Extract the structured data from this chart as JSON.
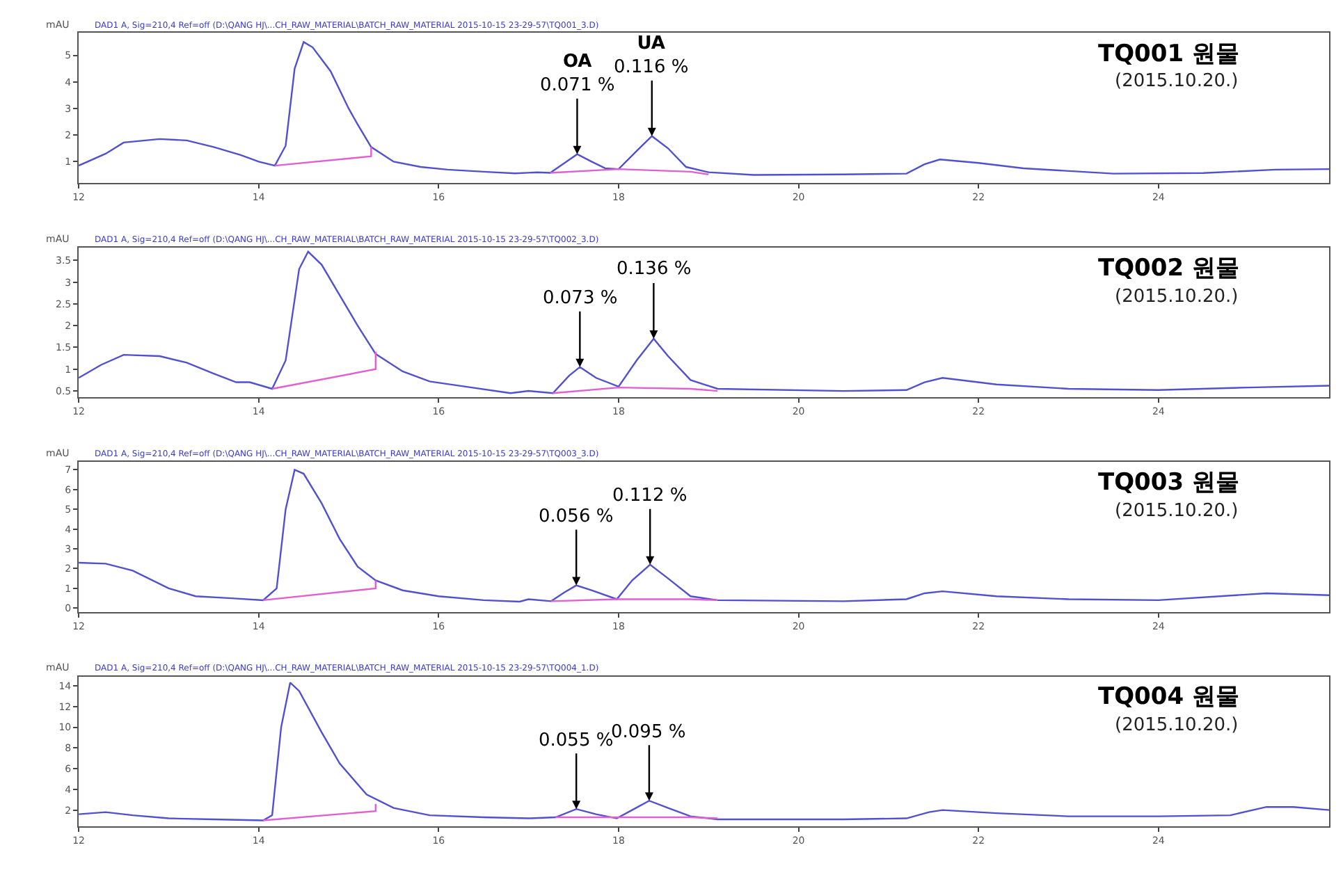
{
  "chart_data": [
    {
      "type": "line",
      "title": "TQ001 원물",
      "subtitle": "(2015.10.20.)",
      "ylabel": "mAU",
      "xlim": [
        12,
        25.9
      ],
      "xticks": [
        12,
        14,
        16,
        18,
        20,
        22,
        24
      ],
      "ylim": [
        0.2,
        5.85
      ],
      "yticks": [
        1,
        2,
        3,
        4,
        5
      ],
      "annotations": [
        "DAD1 A, Sig=210,4 Ref=off (D:\\QANG HJ\\...CH_RAW_MATERIAL\\BATCH_RAW_MATERIAL 2015-10-15 23-29-57\\TQ001_3.D)",
        {
          "text": "OA\n0.071 %",
          "x": 17.54,
          "y": 1.28
        },
        {
          "text": "UA\n0.116 %",
          "x": 18.37,
          "y": 1.96
        }
      ],
      "series": [
        {
          "color": "#5050d0",
          "x": [
            12.0,
            12.3,
            12.5,
            12.9,
            13.2,
            13.5,
            13.8,
            14.0,
            14.18,
            14.3,
            14.4,
            14.5,
            14.6,
            14.8,
            15.0,
            15.1,
            15.25,
            15.5,
            15.8,
            16.1,
            16.5,
            16.85,
            17.1,
            17.24,
            17.4,
            17.54,
            17.7,
            17.85,
            18.0,
            18.2,
            18.37,
            18.55,
            18.75,
            19.0,
            19.5,
            20.5,
            21.2,
            21.4,
            21.57,
            22.0,
            22.5,
            23.5,
            24.5,
            25.3,
            25.9
          ],
          "values": [
            0.85,
            1.3,
            1.72,
            1.85,
            1.8,
            1.55,
            1.25,
            1.0,
            0.85,
            1.6,
            4.5,
            5.5,
            5.3,
            4.4,
            3.0,
            2.4,
            1.55,
            1.0,
            0.8,
            0.7,
            0.62,
            0.56,
            0.6,
            0.58,
            0.95,
            1.28,
            1.0,
            0.75,
            0.72,
            1.4,
            1.96,
            1.5,
            0.8,
            0.6,
            0.5,
            0.52,
            0.55,
            0.9,
            1.08,
            0.95,
            0.75,
            0.55,
            0.57,
            0.7,
            0.72
          ]
        },
        {
          "color": "#e060d0",
          "x": [
            14.18,
            15.25,
            15.25,
            15.3,
            17.24,
            18.0,
            18.8,
            19.0
          ],
          "values": [
            0.85,
            1.2,
            1.55,
            null,
            0.58,
            0.72,
            0.62,
            0.52
          ]
        }
      ]
    },
    {
      "type": "line",
      "title": "TQ002 원물",
      "subtitle": "(2015.10.20.)",
      "ylabel": "mAU",
      "xlim": [
        12,
        25.9
      ],
      "xticks": [
        12,
        14,
        16,
        18,
        20,
        22,
        24
      ],
      "ylim": [
        0.35,
        3.8
      ],
      "yticks": [
        0.5,
        1,
        1.5,
        2,
        2.5,
        3,
        3.5
      ],
      "annotations": [
        "DAD1 A, Sig=210,4 Ref=off (D:\\QANG HJ\\...CH_RAW_MATERIAL\\BATCH_RAW_MATERIAL 2015-10-15 23-29-57\\TQ002_3.D)",
        {
          "text": "0.073 %",
          "x": 17.57,
          "y": 1.05
        },
        {
          "text": "0.136 %",
          "x": 18.39,
          "y": 1.7
        }
      ],
      "series": [
        {
          "color": "#5050d0",
          "x": [
            12.0,
            12.25,
            12.5,
            12.9,
            13.2,
            13.5,
            13.75,
            13.9,
            14.15,
            14.3,
            14.45,
            14.55,
            14.7,
            14.9,
            15.1,
            15.3,
            15.6,
            15.9,
            16.3,
            16.8,
            17.0,
            17.27,
            17.45,
            17.57,
            17.75,
            18.0,
            18.2,
            18.39,
            18.55,
            18.8,
            19.1,
            20.5,
            21.2,
            21.4,
            21.6,
            22.2,
            23.0,
            24.0,
            25.0,
            25.9
          ],
          "values": [
            0.8,
            1.1,
            1.33,
            1.3,
            1.15,
            0.9,
            0.7,
            0.7,
            0.55,
            1.2,
            3.3,
            3.7,
            3.4,
            2.7,
            2.0,
            1.35,
            0.95,
            0.72,
            0.6,
            0.45,
            0.5,
            0.45,
            0.85,
            1.05,
            0.8,
            0.6,
            1.2,
            1.7,
            1.3,
            0.75,
            0.55,
            0.5,
            0.52,
            0.7,
            0.8,
            0.65,
            0.55,
            0.52,
            0.58,
            0.62
          ]
        },
        {
          "color": "#e060d0",
          "x": [
            14.15,
            15.3,
            15.3,
            15.35,
            17.27,
            18.0,
            18.8,
            19.1
          ],
          "values": [
            0.55,
            1.0,
            1.4,
            null,
            0.45,
            0.58,
            0.55,
            0.5
          ]
        }
      ]
    },
    {
      "type": "line",
      "title": "TQ003 원물",
      "subtitle": "(2015.10.20.)",
      "ylabel": "mAU",
      "xlim": [
        12,
        25.9
      ],
      "xticks": [
        12,
        14,
        16,
        18,
        20,
        22,
        24
      ],
      "ylim": [
        -0.2,
        7.4
      ],
      "yticks": [
        0,
        1,
        2,
        3,
        4,
        5,
        6,
        7
      ],
      "annotations": [
        "DAD1 A, Sig=210,4 Ref=off (D:\\QANG HJ\\...CH_RAW_MATERIAL\\BATCH_RAW_MATERIAL 2015-10-15 23-29-57\\TQ003_3.D)",
        {
          "text": "0.056 %",
          "x": 17.53,
          "y": 1.15
        },
        {
          "text": "0.112 %",
          "x": 18.35,
          "y": 2.2
        }
      ],
      "series": [
        {
          "color": "#5050d0",
          "x": [
            12.0,
            12.3,
            12.6,
            13.0,
            13.3,
            13.7,
            14.05,
            14.2,
            14.3,
            14.4,
            14.5,
            14.7,
            14.9,
            15.1,
            15.3,
            15.6,
            16.0,
            16.5,
            16.9,
            17.0,
            17.25,
            17.4,
            17.53,
            17.7,
            17.98,
            18.15,
            18.35,
            18.55,
            18.8,
            19.1,
            20.5,
            21.2,
            21.4,
            21.6,
            22.2,
            23.0,
            24.0,
            25.2,
            25.9
          ],
          "values": [
            2.3,
            2.25,
            1.9,
            1.0,
            0.6,
            0.5,
            0.4,
            1.0,
            5.0,
            7.0,
            6.8,
            5.3,
            3.5,
            2.1,
            1.4,
            0.9,
            0.6,
            0.4,
            0.33,
            0.45,
            0.35,
            0.8,
            1.15,
            0.9,
            0.45,
            1.4,
            2.2,
            1.5,
            0.6,
            0.4,
            0.35,
            0.45,
            0.75,
            0.85,
            0.6,
            0.45,
            0.4,
            0.75,
            0.65
          ]
        },
        {
          "color": "#e060d0",
          "x": [
            14.05,
            15.3,
            15.3,
            15.35,
            17.25,
            17.98,
            18.8,
            19.1
          ],
          "values": [
            0.4,
            1.0,
            1.4,
            null,
            0.35,
            0.45,
            0.45,
            0.4
          ]
        }
      ]
    },
    {
      "type": "line",
      "title": "TQ004 원물",
      "subtitle": "(2015.10.20.)",
      "ylabel": "mAU",
      "xlim": [
        12,
        25.9
      ],
      "xticks": [
        12,
        14,
        16,
        18,
        20,
        22,
        24
      ],
      "ylim": [
        0.4,
        14.9
      ],
      "yticks": [
        2,
        4,
        6,
        8,
        10,
        12,
        14
      ],
      "annotations": [
        "DAD1 A, Sig=210,4 Ref=off (D:\\QANG HJ\\...CH_RAW_MATERIAL\\BATCH_RAW_MATERIAL 2015-10-15 23-29-57\\TQ004_1.D)",
        {
          "text": "0.055 %",
          "x": 17.53,
          "y": 2.1
        },
        {
          "text": "0.095 %",
          "x": 18.34,
          "y": 2.9
        }
      ],
      "series": [
        {
          "color": "#5050d0",
          "x": [
            12.0,
            12.3,
            12.6,
            13.0,
            13.5,
            14.05,
            14.15,
            14.25,
            14.35,
            14.45,
            14.7,
            14.9,
            15.2,
            15.5,
            15.9,
            16.5,
            17.0,
            17.3,
            17.53,
            17.75,
            17.98,
            18.15,
            18.34,
            18.55,
            18.8,
            19.1,
            20.5,
            21.2,
            21.45,
            21.6,
            22.2,
            23.0,
            24.0,
            24.8,
            25.2,
            25.5,
            25.9
          ],
          "values": [
            1.6,
            1.8,
            1.5,
            1.2,
            1.1,
            1.0,
            1.5,
            10.0,
            14.3,
            13.5,
            9.5,
            6.5,
            3.5,
            2.2,
            1.5,
            1.3,
            1.2,
            1.3,
            2.1,
            1.6,
            1.2,
            2.0,
            2.9,
            2.2,
            1.4,
            1.1,
            1.1,
            1.2,
            1.8,
            2.0,
            1.7,
            1.4,
            1.4,
            1.5,
            2.3,
            2.3,
            2.0
          ]
        },
        {
          "color": "#e060d0",
          "x": [
            14.05,
            15.3,
            15.3,
            15.35,
            17.3,
            17.98,
            18.8,
            19.1
          ],
          "values": [
            1.0,
            1.9,
            2.6,
            null,
            1.3,
            1.3,
            1.3,
            1.2
          ]
        }
      ]
    }
  ]
}
